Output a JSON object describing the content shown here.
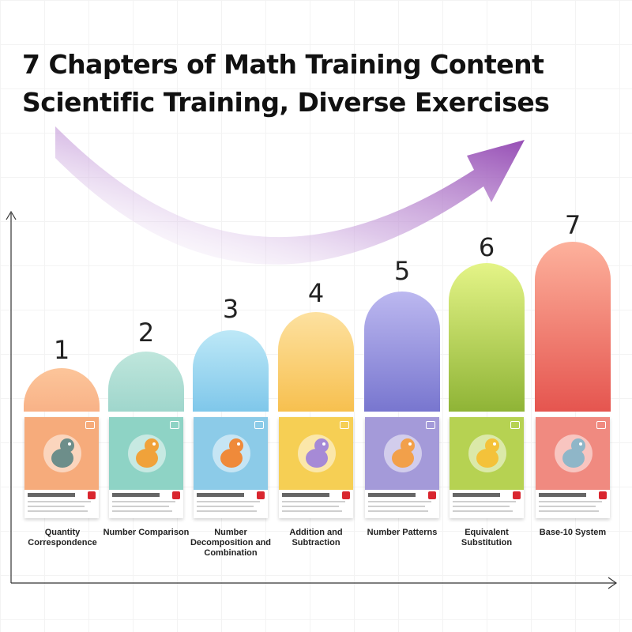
{
  "title": {
    "line1": "7 Chapters of Math Training Content",
    "line2": "Scientific Training, Diverse Exercises"
  },
  "icons": {
    "arrow": "growth-arrow-icon",
    "dinosaur": "dinosaur-icon",
    "cart": "cart-icon"
  },
  "colors": {
    "arrow": "#8d3fae",
    "text": "#111111"
  },
  "chapters": [
    {
      "number": "1",
      "label": "Quantity Correspondence",
      "color_top": "#fcc59a",
      "color_bottom": "#f8b287",
      "card": "#f6ab7b"
    },
    {
      "number": "2",
      "label": "Number Comparison",
      "color_top": "#bfe6dc",
      "color_bottom": "#9fd6cc",
      "card": "#8ed3c5"
    },
    {
      "number": "3",
      "label": "Number Decomposition and Combination",
      "color_top": "#bde8f7",
      "color_bottom": "#7fc7ea",
      "card": "#8ccbe8"
    },
    {
      "number": "4",
      "label": "Addition and Subtraction",
      "color_top": "#fde1a0",
      "color_bottom": "#f7c04f",
      "card": "#f6cf54"
    },
    {
      "number": "5",
      "label": "Number Patterns",
      "color_top": "#bcb8f0",
      "color_bottom": "#7876cf",
      "card": "#a49ad9"
    },
    {
      "number": "6",
      "label": "Equivalent Substitution",
      "color_top": "#e4f487",
      "color_bottom": "#8fb436",
      "card": "#b6d252"
    },
    {
      "number": "7",
      "label": "Base-10 System",
      "color_top": "#fdb19c",
      "color_bottom": "#e5554f",
      "card": "#f08a80"
    }
  ]
}
